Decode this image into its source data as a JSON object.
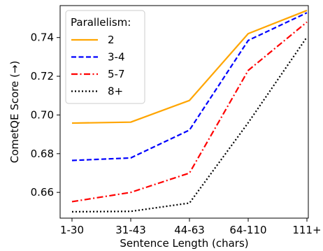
{
  "chart_data": {
    "type": "line",
    "categories": [
      "1-30",
      "31-43",
      "44-63",
      "64-110",
      "111+"
    ],
    "series": [
      {
        "name": "2",
        "values": [
          0.6958,
          0.6963,
          0.7075,
          0.742,
          0.754
        ],
        "color": "#FFA500",
        "dash": "solid"
      },
      {
        "name": "3-4",
        "values": [
          0.6765,
          0.6778,
          0.6922,
          0.7385,
          0.7528
        ],
        "color": "#0000FF",
        "dash": "dashed"
      },
      {
        "name": "5-7",
        "values": [
          0.6552,
          0.66,
          0.67,
          0.723,
          0.748
        ],
        "color": "#FF0000",
        "dash": "dashdot"
      },
      {
        "name": "8+",
        "values": [
          0.65,
          0.6502,
          0.6545,
          0.696,
          0.7402
        ],
        "color": "#000000",
        "dash": "dotted"
      }
    ],
    "xlabel": "Sentence Length (chars)",
    "ylabel": "CometQE Score (→)",
    "ylim": [
      0.6467,
      0.7565
    ],
    "yticks": [
      0.66,
      0.68,
      0.7,
      0.72,
      0.74
    ],
    "ytick_labels": [
      "0.66",
      "0.68",
      "0.70",
      "0.72",
      "0.74"
    ],
    "legend": {
      "title": "Parallelism:",
      "placement": "top-left"
    },
    "grid": false
  }
}
